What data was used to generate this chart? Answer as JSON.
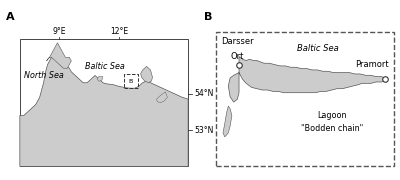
{
  "fig_width": 4.0,
  "fig_height": 1.8,
  "dpi": 100,
  "bg_color": "#ffffff",
  "land_color": "#cccccc",
  "land_edge": "#555555",
  "panel_A_label": "A",
  "panel_B_label": "B",
  "label_fontsize": 8,
  "annotation_fontsize": 6.0,
  "north_sea_label": "North Sea",
  "baltic_sea_label_A": "Baltic Sea",
  "baltic_sea_label_B": "Baltic Sea",
  "lagoon_label1": "Lagoon",
  "lagoon_label2": "\"Bodden chain\"",
  "darsser_label1": "Darsser",
  "darsser_label2": "Ort",
  "pramort_label": "Pramort",
  "lon_labels": [
    "9°E",
    "12°E"
  ],
  "lat_labels": [
    "54°N",
    "53°N"
  ]
}
